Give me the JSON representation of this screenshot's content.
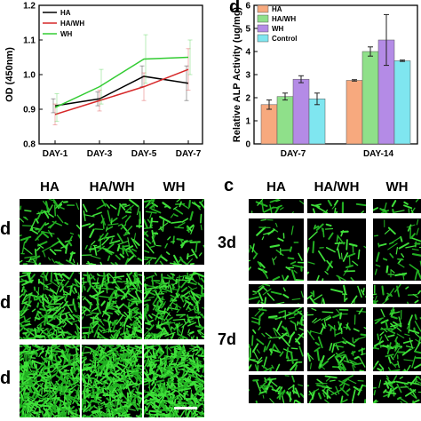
{
  "panels": {
    "d_letter": "d",
    "c_letter": "c",
    "left_ticks_x": [
      "DAY-1",
      "DAY-3",
      "DAY-5",
      "DAY-7"
    ]
  },
  "chart_data": [
    {
      "type": "line",
      "ylabel": "OD (450nm)",
      "categories": [
        "DAY-1",
        "DAY-3",
        "DAY-5",
        "DAY-7"
      ],
      "ylim": [
        0.8,
        1.2
      ],
      "yticks": [
        "0.8",
        "0.9",
        "1.0",
        "1.1",
        "1.2"
      ],
      "series": [
        {
          "name": "HA",
          "color": "#000000",
          "values": [
            0.91,
            0.93,
            0.995,
            0.975
          ],
          "err": [
            0.02,
            0.02,
            0.03,
            0.05
          ]
        },
        {
          "name": "HA/WH",
          "color": "#d62728",
          "values": [
            0.885,
            0.925,
            0.965,
            1.015
          ],
          "err": [
            0.03,
            0.03,
            0.04,
            0.06
          ]
        },
        {
          "name": "WH",
          "color": "#33cc33",
          "values": [
            0.905,
            0.965,
            1.045,
            1.05
          ],
          "err": [
            0.04,
            0.05,
            0.07,
            0.05
          ]
        }
      ]
    },
    {
      "type": "bar",
      "ylabel": "Relative ALP Activity (ug/mg)",
      "categories": [
        "DAY-7",
        "DAY-14"
      ],
      "ylim": [
        0,
        6
      ],
      "yticks": [
        "0",
        "1",
        "2",
        "3",
        "4",
        "5",
        "6"
      ],
      "series": [
        {
          "name": "HA",
          "color": "#f7a97e",
          "values": [
            1.7,
            2.75
          ],
          "err": [
            0.2,
            0.03
          ]
        },
        {
          "name": "HA/WH",
          "color": "#8fe08a",
          "values": [
            2.05,
            4.0
          ],
          "err": [
            0.15,
            0.2
          ]
        },
        {
          "name": "WH",
          "color": "#b48be6",
          "values": [
            2.8,
            4.5
          ],
          "err": [
            0.15,
            1.1
          ]
        },
        {
          "name": "Control",
          "color": "#7fe6f0",
          "values": [
            1.95,
            3.6
          ],
          "err": [
            0.25,
            0.03
          ]
        }
      ]
    }
  ],
  "micrographs": {
    "left_cols": [
      "HA",
      "HA/WH",
      "WH"
    ],
    "left_rows": [
      "d",
      "d",
      "d"
    ],
    "right_cols": [
      "HA",
      "HA/WH",
      "WH"
    ],
    "right_rows": [
      "3d",
      "7d"
    ]
  }
}
